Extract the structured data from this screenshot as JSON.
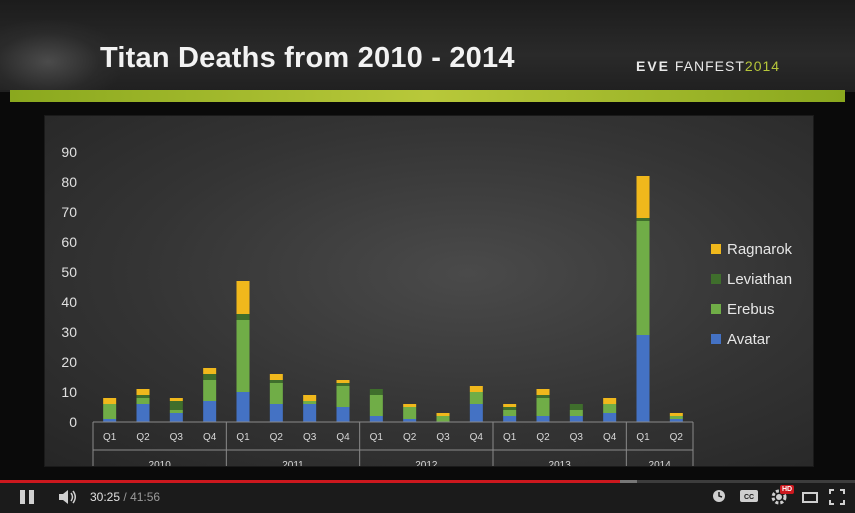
{
  "slide": {
    "title": "Titan Deaths from 2010 - 2014",
    "brand_eve": "EVE",
    "brand_fanfest": "FANFEST",
    "brand_year": "2014"
  },
  "chart_data": {
    "type": "bar",
    "stacked": true,
    "title": "",
    "xlabel": "",
    "ylabel": "",
    "ylim": [
      0,
      90
    ],
    "yticks": [
      0,
      10,
      20,
      30,
      40,
      50,
      60,
      70,
      80,
      90
    ],
    "grid": false,
    "legend_position": "right",
    "categories": [
      "Q1",
      "Q2",
      "Q3",
      "Q4",
      "Q1",
      "Q2",
      "Q3",
      "Q4",
      "Q1",
      "Q2",
      "Q3",
      "Q4",
      "Q1",
      "Q2",
      "Q3",
      "Q4",
      "Q1",
      "Q2"
    ],
    "groups": [
      {
        "label": "2010",
        "count": 4
      },
      {
        "label": "2011",
        "count": 4
      },
      {
        "label": "2012",
        "count": 4
      },
      {
        "label": "2013",
        "count": 4
      },
      {
        "label": "2014",
        "count": 2
      }
    ],
    "series": [
      {
        "name": "Avatar",
        "color": "#4472c4",
        "values": [
          1,
          6,
          3,
          7,
          10,
          6,
          6,
          5,
          2,
          1,
          0,
          6,
          2,
          2,
          2,
          3,
          29,
          1
        ]
      },
      {
        "name": "Erebus",
        "color": "#70ad47",
        "values": [
          5,
          2,
          1,
          7,
          24,
          7,
          1,
          7,
          7,
          4,
          2,
          4,
          2,
          6,
          2,
          3,
          38,
          1
        ]
      },
      {
        "name": "Leviathan",
        "color": "#3f6e2c",
        "values": [
          0,
          1,
          3,
          2,
          2,
          1,
          0,
          1,
          2,
          0,
          0,
          0,
          1,
          1,
          2,
          0,
          1,
          0
        ]
      },
      {
        "name": "Ragnarok",
        "color": "#f0b81c",
        "values": [
          2,
          2,
          1,
          2,
          11,
          2,
          2,
          1,
          0,
          1,
          1,
          2,
          1,
          2,
          0,
          2,
          14,
          1
        ]
      }
    ]
  },
  "player": {
    "current_time": "30:25",
    "separator": "/",
    "duration": "41:56",
    "progress_fraction": 0.7255,
    "buffered_fraction": 0.745,
    "hd_label": "HD",
    "accent_color": "#cc181e",
    "icons": [
      "pause-icon",
      "volume-icon",
      "clock-icon",
      "cc-icon",
      "gear-icon",
      "theater-icon",
      "fullscreen-icon"
    ]
  }
}
